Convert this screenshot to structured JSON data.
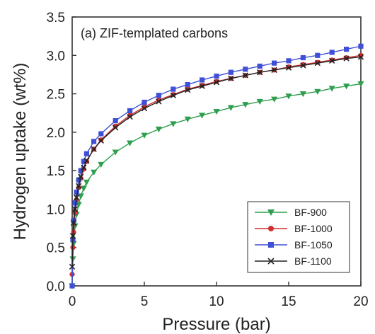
{
  "chart_data": {
    "type": "line",
    "annotation": "(a) ZIF-templated carbons",
    "ylabel": "Hydrogen uptake (wt%)",
    "xlabel": "Pressure (bar)",
    "xlim": [
      0,
      20
    ],
    "ylim": [
      0,
      3.5
    ],
    "xticks": [
      "0",
      "5",
      "10",
      "15",
      "20"
    ],
    "yticks": [
      "0.0",
      "0.5",
      "1.0",
      "1.5",
      "2.0",
      "2.5",
      "3.0",
      "3.5"
    ],
    "grid": false,
    "legend_position": "bottom-right",
    "series": [
      {
        "name": "BF-900",
        "color": "#2e9e4f",
        "marker": "triangle-down",
        "x": [
          0.0,
          0.05,
          0.1,
          0.2,
          0.3,
          0.45,
          0.6,
          0.8,
          1.0,
          1.5,
          2.0,
          3.0,
          4.0,
          5.0,
          6.0,
          7.0,
          8.0,
          9.0,
          10.0,
          11.0,
          12.0,
          13.0,
          14.0,
          15.0,
          16.0,
          17.0,
          18.0,
          19.0,
          20.0
        ],
        "y": [
          0.0,
          0.35,
          0.55,
          0.78,
          0.93,
          1.06,
          1.17,
          1.27,
          1.35,
          1.48,
          1.58,
          1.74,
          1.86,
          1.96,
          2.04,
          2.11,
          2.17,
          2.22,
          2.27,
          2.32,
          2.36,
          2.4,
          2.43,
          2.47,
          2.5,
          2.53,
          2.57,
          2.6,
          2.63
        ]
      },
      {
        "name": "BF-1000",
        "color": "#d32f2f",
        "marker": "circle",
        "x": [
          0.0,
          0.05,
          0.1,
          0.2,
          0.3,
          0.45,
          0.6,
          0.8,
          1.0,
          1.5,
          2.0,
          3.0,
          4.0,
          5.0,
          6.0,
          7.0,
          8.0,
          9.0,
          10.0,
          11.0,
          12.0,
          13.0,
          14.0,
          15.0,
          16.0,
          17.0,
          18.0,
          19.0,
          20.0
        ],
        "y": [
          0.15,
          0.5,
          0.7,
          0.95,
          1.12,
          1.28,
          1.4,
          1.52,
          1.62,
          1.78,
          1.9,
          2.08,
          2.22,
          2.33,
          2.42,
          2.49,
          2.56,
          2.61,
          2.66,
          2.7,
          2.74,
          2.78,
          2.81,
          2.85,
          2.88,
          2.91,
          2.94,
          2.97,
          3.0
        ]
      },
      {
        "name": "BF-1050",
        "color": "#3f4fd6",
        "marker": "square",
        "x": [
          0.0,
          0.05,
          0.1,
          0.2,
          0.3,
          0.45,
          0.6,
          0.8,
          1.0,
          1.5,
          2.0,
          3.0,
          4.0,
          5.0,
          6.0,
          7.0,
          8.0,
          9.0,
          10.0,
          11.0,
          12.0,
          13.0,
          14.0,
          15.0,
          16.0,
          17.0,
          18.0,
          19.0,
          20.0
        ],
        "y": [
          0.0,
          0.6,
          0.85,
          1.08,
          1.22,
          1.38,
          1.5,
          1.62,
          1.72,
          1.88,
          1.98,
          2.15,
          2.28,
          2.39,
          2.48,
          2.56,
          2.62,
          2.68,
          2.73,
          2.78,
          2.82,
          2.86,
          2.9,
          2.93,
          2.97,
          3.0,
          3.04,
          3.08,
          3.12
        ]
      },
      {
        "name": "BF-1100",
        "color": "#222222",
        "marker": "x",
        "x": [
          0.0,
          0.05,
          0.1,
          0.2,
          0.3,
          0.45,
          0.6,
          0.8,
          1.0,
          1.5,
          2.0,
          3.0,
          4.0,
          5.0,
          6.0,
          7.0,
          8.0,
          9.0,
          10.0,
          11.0,
          12.0,
          13.0,
          14.0,
          15.0,
          16.0,
          17.0,
          18.0,
          19.0,
          20.0
        ],
        "y": [
          0.25,
          0.65,
          0.82,
          1.0,
          1.15,
          1.3,
          1.42,
          1.54,
          1.63,
          1.78,
          1.89,
          2.06,
          2.2,
          2.31,
          2.4,
          2.48,
          2.55,
          2.6,
          2.65,
          2.7,
          2.74,
          2.78,
          2.81,
          2.84,
          2.87,
          2.9,
          2.93,
          2.96,
          2.98
        ]
      }
    ]
  }
}
